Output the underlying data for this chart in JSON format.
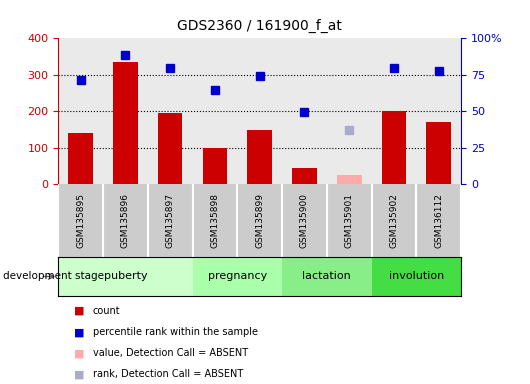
{
  "title": "GDS2360 / 161900_f_at",
  "samples": [
    "GSM135895",
    "GSM135896",
    "GSM135897",
    "GSM135898",
    "GSM135899",
    "GSM135900",
    "GSM135901",
    "GSM135902",
    "GSM136112"
  ],
  "count_values": [
    140,
    335,
    195,
    100,
    148,
    45,
    null,
    200,
    170
  ],
  "count_absent_values": [
    null,
    null,
    null,
    null,
    null,
    null,
    25,
    null,
    null
  ],
  "rank_values": [
    285,
    355,
    318,
    258,
    297,
    197,
    null,
    320,
    310
  ],
  "rank_absent_values": [
    null,
    null,
    null,
    null,
    null,
    null,
    148,
    null,
    null
  ],
  "bar_color": "#cc0000",
  "bar_absent_color": "#ffaaaa",
  "rank_color": "#0000cc",
  "rank_absent_color": "#aaaacc",
  "stage_groups": [
    {
      "label": "puberty",
      "start": 0,
      "end": 3,
      "color": "#ccffcc"
    },
    {
      "label": "pregnancy",
      "start": 3,
      "end": 5,
      "color": "#aaffaa"
    },
    {
      "label": "lactation",
      "start": 5,
      "end": 7,
      "color": "#88ee88"
    },
    {
      "label": "involution",
      "start": 7,
      "end": 9,
      "color": "#44dd44"
    }
  ],
  "ylim_left": [
    0,
    400
  ],
  "left_yticks": [
    0,
    100,
    200,
    300,
    400
  ],
  "left_tick_color": "#cc0000",
  "right_tick_color": "#0000cc",
  "bg_color": "#ffffff",
  "sample_box_color": "#cccccc",
  "legend_items": [
    {
      "label": "count",
      "color": "#cc0000"
    },
    {
      "label": "percentile rank within the sample",
      "color": "#0000cc"
    },
    {
      "label": "value, Detection Call = ABSENT",
      "color": "#ffaaaa"
    },
    {
      "label": "rank, Detection Call = ABSENT",
      "color": "#aaaacc"
    }
  ]
}
